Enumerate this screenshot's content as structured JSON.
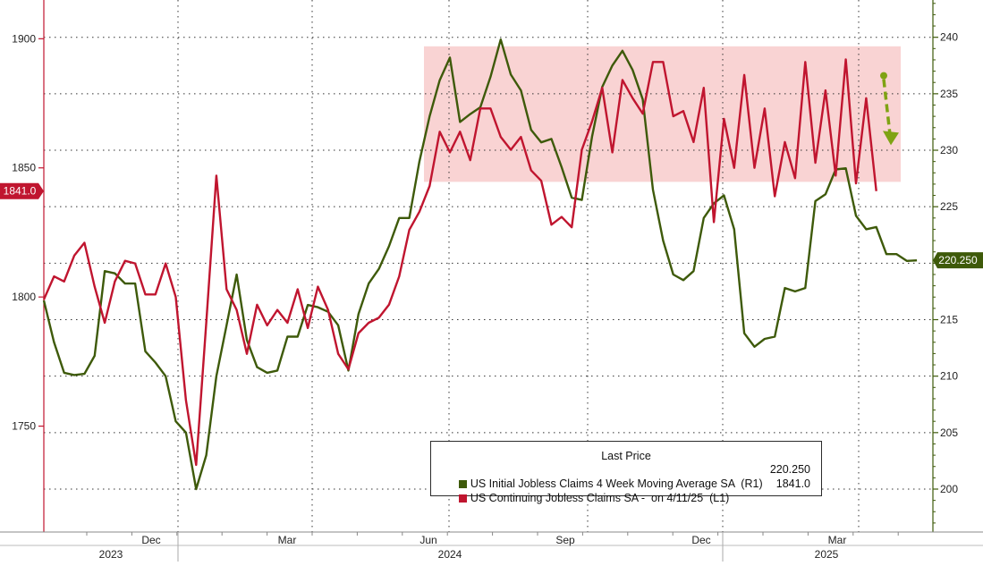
{
  "chart_data": {
    "type": "line",
    "title": "",
    "left_axis": {
      "ticks": [
        1750,
        1800,
        1850,
        1900
      ],
      "ylim": [
        1709,
        1915
      ],
      "color": "#c0152f"
    },
    "right_axis": {
      "ticks": [
        200,
        205,
        210,
        215,
        220,
        225,
        230,
        235,
        240
      ],
      "ylim": [
        196.2,
        243.3
      ],
      "color": "#3e5a0a"
    },
    "x_axis": {
      "month_labels": [
        "Dec",
        "Mar",
        "Jun",
        "Sep",
        "Dec",
        "Mar"
      ],
      "year_labels": [
        "2023",
        "2024",
        "2025"
      ]
    },
    "grid": true,
    "highlight_band": {
      "right_axis_range": [
        227.2,
        239.2
      ],
      "color": "#f9d3d3"
    },
    "annotation": {
      "type": "dashed-arrow",
      "direction": "down",
      "color": "#7fa313",
      "from_right_axis": 236.6,
      "to_right_axis": 230.6
    },
    "series": [
      {
        "name": "US Initial Jobless Claims 4 Week Moving Average SA",
        "axis": "R1",
        "color": "#3e5a0a",
        "last_value": "220.250",
        "values": [
          216.7,
          213.0,
          210.3,
          210.1,
          210.2,
          211.8,
          219.3,
          219.1,
          218.2,
          218.2,
          212.2,
          211.2,
          210.0,
          206.0,
          205.0,
          200.0,
          203.0,
          210.0,
          214.5,
          219.0,
          213.2,
          210.8,
          210.3,
          210.5,
          213.5,
          213.5,
          216.3,
          216.1,
          215.7,
          214.5,
          210.5,
          215.5,
          218.2,
          219.5,
          221.5,
          224.0,
          224.0,
          229.0,
          233.0,
          236.2,
          238.2,
          232.5,
          233.2,
          233.8,
          236.5,
          239.8,
          236.7,
          235.3,
          231.8,
          230.7,
          231.0,
          228.5,
          225.8,
          225.6,
          231.2,
          235.6,
          237.5,
          238.8,
          237.1,
          234.5,
          226.5,
          222.0,
          219.0,
          218.5,
          219.3,
          224.0,
          225.3,
          226.0,
          223.0,
          213.8,
          212.6,
          213.3,
          213.5,
          217.8,
          217.5,
          217.8,
          225.5,
          226.1,
          228.3,
          228.4,
          224.2,
          223.0,
          223.2,
          220.8,
          220.8,
          220.2,
          220.25
        ]
      },
      {
        "name": "US Continuing Jobless Claims SA - on 4/11/25",
        "axis": "L1",
        "color": "#c0152f",
        "last_value": "1841.0",
        "values": [
          1799.0,
          1808.0,
          1806.0,
          1816.0,
          1821.0,
          1804.0,
          1790.0,
          1806.0,
          1814.0,
          1813.0,
          1801.0,
          1801.0,
          1813.0,
          1800.0,
          1760.0,
          1735.0,
          1790.0,
          1847.0,
          1803.0,
          1795.0,
          1778.0,
          1797.0,
          1789.0,
          1795.0,
          1790.0,
          1803.0,
          1788.0,
          1804.0,
          1795.0,
          1778.0,
          1772.0,
          1786.0,
          1790.0,
          1792.0,
          1797.0,
          1808.0,
          1826.0,
          1833.0,
          1843.0,
          1864.0,
          1856.0,
          1864.0,
          1853.0,
          1873.0,
          1873.0,
          1862.0,
          1857.0,
          1862.0,
          1849.0,
          1845.0,
          1828.0,
          1831.0,
          1827.0,
          1857.0,
          1868.0,
          1881.0,
          1856.0,
          1884.0,
          1877.0,
          1871.0,
          1891.0,
          1891.0,
          1870.0,
          1872.0,
          1860.0,
          1881.0,
          1829.0,
          1869.0,
          1850.0,
          1886.0,
          1850.0,
          1873.0,
          1839.0,
          1860.0,
          1846.0,
          1891.0,
          1852.0,
          1880.0,
          1847.0,
          1892.0,
          1844.0,
          1877.0,
          1841.0
        ]
      }
    ],
    "legend": {
      "title": "Last Price",
      "entries": [
        {
          "text": "US Initial Jobless Claims 4 Week Moving Average SA  (R1)",
          "value": "220.250",
          "color": "#3e5a0a"
        },
        {
          "text": "US Continuing Jobless Claims SA -  on 4/11/25  (L1)",
          "value": "1841.0",
          "color": "#c0152f"
        }
      ]
    }
  }
}
